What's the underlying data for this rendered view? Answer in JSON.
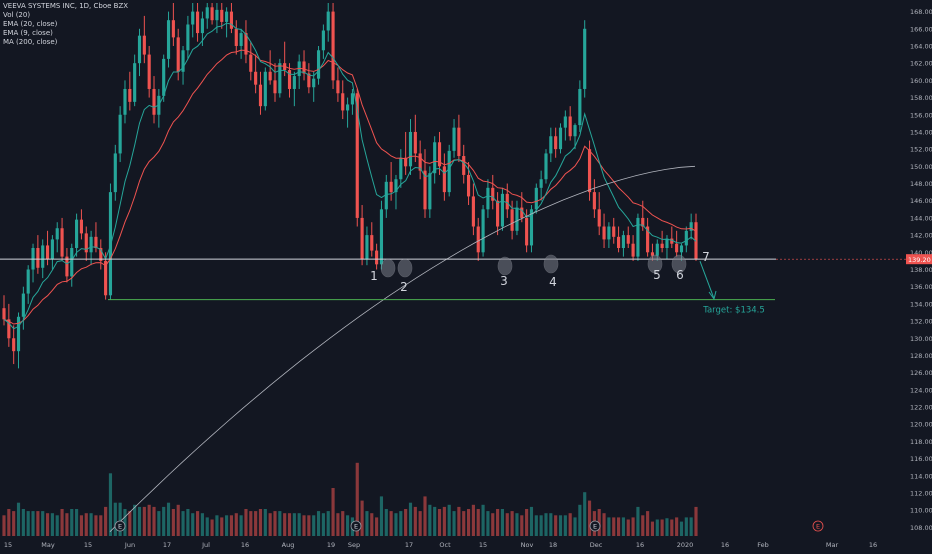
{
  "legend": {
    "symbol": "VEEVA SYSTEMS INC, 1D, Cboe BZX",
    "vol": "Vol (20)",
    "ema20": "EMA (20, close)",
    "ema9": "EMA (9, close)",
    "ma200": "MA (200, close)"
  },
  "colors": {
    "background": "#131722",
    "up": "#26a69a",
    "down": "#ef5350",
    "ema9": "#26a69a",
    "ema20": "#ef5350",
    "ma200": "#b2b5be",
    "support": "#d1d4dc",
    "target": "#4caf50",
    "axis_text": "#b2b5be",
    "circle": "#787b86"
  },
  "chart_data": {
    "type": "candlestick",
    "title": "VEEVA SYSTEMS INC, 1D, Cboe BZX",
    "y_axis": {
      "min": 107,
      "max": 169,
      "side": "right",
      "ticks": [
        108,
        110,
        112,
        114,
        116,
        118,
        120,
        122,
        124,
        126,
        128,
        130,
        132,
        134,
        136,
        138,
        140,
        142,
        144,
        146,
        148,
        150,
        152,
        154,
        156,
        158,
        160,
        162,
        164,
        166,
        168
      ]
    },
    "x_axis": {
      "labels": [
        "15",
        "May",
        "15",
        "Jun",
        "17",
        "Jul",
        "16",
        "Aug",
        "19",
        "Sep",
        "17",
        "Oct",
        "15",
        "Nov",
        "18",
        "Dec",
        "16",
        "2020",
        "16",
        "Feb",
        "Mar",
        "16"
      ]
    },
    "candles": [
      {
        "o": 133.5,
        "h": 135.0,
        "l": 131.5,
        "c": 132.2
      },
      {
        "o": 132.2,
        "h": 134.0,
        "l": 129.0,
        "c": 130.0
      },
      {
        "o": 130.0,
        "h": 131.5,
        "l": 127.0,
        "c": 128.5
      },
      {
        "o": 128.5,
        "h": 133.0,
        "l": 126.5,
        "c": 132.5
      },
      {
        "o": 132.5,
        "h": 136.0,
        "l": 131.0,
        "c": 135.2
      },
      {
        "o": 135.2,
        "h": 138.5,
        "l": 134.0,
        "c": 138.0
      },
      {
        "o": 138.0,
        "h": 141.0,
        "l": 136.5,
        "c": 140.5
      },
      {
        "o": 140.5,
        "h": 142.0,
        "l": 137.5,
        "c": 138.2
      },
      {
        "o": 138.2,
        "h": 141.5,
        "l": 137.0,
        "c": 140.8
      },
      {
        "o": 140.8,
        "h": 142.5,
        "l": 138.5,
        "c": 139.2
      },
      {
        "o": 139.2,
        "h": 142.0,
        "l": 138.0,
        "c": 141.5
      },
      {
        "o": 141.5,
        "h": 143.5,
        "l": 140.0,
        "c": 142.8
      },
      {
        "o": 142.8,
        "h": 144.0,
        "l": 139.0,
        "c": 139.5
      },
      {
        "o": 139.5,
        "h": 140.5,
        "l": 136.5,
        "c": 137.2
      },
      {
        "o": 137.2,
        "h": 141.0,
        "l": 136.0,
        "c": 140.5
      },
      {
        "o": 140.5,
        "h": 144.5,
        "l": 139.5,
        "c": 143.8
      },
      {
        "o": 143.8,
        "h": 145.0,
        "l": 141.5,
        "c": 142.2
      },
      {
        "o": 142.2,
        "h": 143.0,
        "l": 139.0,
        "c": 140.0
      },
      {
        "o": 140.0,
        "h": 142.5,
        "l": 138.5,
        "c": 141.8
      },
      {
        "o": 141.8,
        "h": 143.5,
        "l": 140.0,
        "c": 140.5
      },
      {
        "o": 140.5,
        "h": 141.5,
        "l": 138.0,
        "c": 139.0
      },
      {
        "o": 139.0,
        "h": 140.0,
        "l": 134.5,
        "c": 135.0
      },
      {
        "o": 135.0,
        "h": 148.0,
        "l": 134.5,
        "c": 147.0
      },
      {
        "o": 147.0,
        "h": 152.5,
        "l": 146.0,
        "c": 151.5
      },
      {
        "o": 151.5,
        "h": 157.0,
        "l": 150.5,
        "c": 156.0
      },
      {
        "o": 156.0,
        "h": 160.0,
        "l": 155.0,
        "c": 159.0
      },
      {
        "o": 159.0,
        "h": 161.0,
        "l": 156.5,
        "c": 157.5
      },
      {
        "o": 157.5,
        "h": 163.0,
        "l": 157.0,
        "c": 162.0
      },
      {
        "o": 162.0,
        "h": 166.0,
        "l": 160.5,
        "c": 165.2
      },
      {
        "o": 165.2,
        "h": 167.5,
        "l": 162.0,
        "c": 163.0
      },
      {
        "o": 163.0,
        "h": 164.0,
        "l": 158.0,
        "c": 159.0
      },
      {
        "o": 159.0,
        "h": 160.5,
        "l": 155.0,
        "c": 156.0
      },
      {
        "o": 156.0,
        "h": 159.0,
        "l": 154.5,
        "c": 158.2
      },
      {
        "o": 158.2,
        "h": 163.0,
        "l": 157.5,
        "c": 162.5
      },
      {
        "o": 162.5,
        "h": 168.0,
        "l": 161.5,
        "c": 167.0
      },
      {
        "o": 167.0,
        "h": 169.0,
        "l": 164.0,
        "c": 165.0
      },
      {
        "o": 165.0,
        "h": 166.0,
        "l": 160.0,
        "c": 161.0
      },
      {
        "o": 161.0,
        "h": 164.0,
        "l": 159.5,
        "c": 163.5
      },
      {
        "o": 163.5,
        "h": 167.5,
        "l": 162.5,
        "c": 166.5
      },
      {
        "o": 166.5,
        "h": 169.0,
        "l": 165.0,
        "c": 168.0
      },
      {
        "o": 168.0,
        "h": 169.0,
        "l": 164.5,
        "c": 165.5
      },
      {
        "o": 165.5,
        "h": 168.0,
        "l": 164.0,
        "c": 167.2
      },
      {
        "o": 167.2,
        "h": 169.0,
        "l": 166.0,
        "c": 168.5
      },
      {
        "o": 168.5,
        "h": 169.0,
        "l": 166.5,
        "c": 167.0
      },
      {
        "o": 167.0,
        "h": 169.0,
        "l": 165.5,
        "c": 168.2
      },
      {
        "o": 168.2,
        "h": 169.0,
        "l": 166.0,
        "c": 166.8
      },
      {
        "o": 166.8,
        "h": 168.5,
        "l": 165.0,
        "c": 168.0
      },
      {
        "o": 168.0,
        "h": 169.0,
        "l": 165.5,
        "c": 166.0
      },
      {
        "o": 166.0,
        "h": 167.0,
        "l": 163.0,
        "c": 164.0
      },
      {
        "o": 164.0,
        "h": 166.0,
        "l": 162.5,
        "c": 165.5
      },
      {
        "o": 165.5,
        "h": 167.0,
        "l": 162.0,
        "c": 163.0
      },
      {
        "o": 163.0,
        "h": 164.5,
        "l": 160.0,
        "c": 161.0
      },
      {
        "o": 161.0,
        "h": 163.0,
        "l": 158.5,
        "c": 159.5
      },
      {
        "o": 159.5,
        "h": 161.0,
        "l": 156.0,
        "c": 157.0
      },
      {
        "o": 157.0,
        "h": 161.5,
        "l": 156.5,
        "c": 161.0
      },
      {
        "o": 161.0,
        "h": 163.5,
        "l": 159.5,
        "c": 160.0
      },
      {
        "o": 160.0,
        "h": 162.0,
        "l": 157.5,
        "c": 158.5
      },
      {
        "o": 158.5,
        "h": 162.5,
        "l": 158.0,
        "c": 162.0
      },
      {
        "o": 162.0,
        "h": 164.5,
        "l": 160.5,
        "c": 161.2
      },
      {
        "o": 161.2,
        "h": 162.0,
        "l": 158.0,
        "c": 159.0
      },
      {
        "o": 159.0,
        "h": 161.0,
        "l": 157.0,
        "c": 160.5
      },
      {
        "o": 160.5,
        "h": 163.0,
        "l": 159.0,
        "c": 162.2
      },
      {
        "o": 162.2,
        "h": 163.5,
        "l": 160.0,
        "c": 160.8
      },
      {
        "o": 160.8,
        "h": 162.0,
        "l": 158.5,
        "c": 159.2
      },
      {
        "o": 159.2,
        "h": 161.0,
        "l": 157.5,
        "c": 160.2
      },
      {
        "o": 160.2,
        "h": 164.0,
        "l": 159.5,
        "c": 163.5
      },
      {
        "o": 163.5,
        "h": 166.5,
        "l": 162.5,
        "c": 165.8
      },
      {
        "o": 165.8,
        "h": 169.0,
        "l": 164.5,
        "c": 168.0
      },
      {
        "o": 168.0,
        "h": 169.0,
        "l": 159.0,
        "c": 160.0
      },
      {
        "o": 160.0,
        "h": 161.5,
        "l": 157.5,
        "c": 158.5
      },
      {
        "o": 158.5,
        "h": 160.0,
        "l": 155.5,
        "c": 156.5
      },
      {
        "o": 156.5,
        "h": 158.0,
        "l": 154.5,
        "c": 157.2
      },
      {
        "o": 157.2,
        "h": 159.0,
        "l": 156.0,
        "c": 158.5
      },
      {
        "o": 158.5,
        "h": 159.0,
        "l": 143.0,
        "c": 144.0
      },
      {
        "o": 144.0,
        "h": 145.5,
        "l": 138.5,
        "c": 139.2
      },
      {
        "o": 139.2,
        "h": 143.0,
        "l": 138.5,
        "c": 142.0
      },
      {
        "o": 142.0,
        "h": 143.5,
        "l": 139.5,
        "c": 140.2
      },
      {
        "o": 140.2,
        "h": 141.0,
        "l": 138.0,
        "c": 138.6
      },
      {
        "o": 138.6,
        "h": 146.0,
        "l": 138.0,
        "c": 145.0
      },
      {
        "o": 145.0,
        "h": 149.0,
        "l": 144.0,
        "c": 148.2
      },
      {
        "o": 148.2,
        "h": 150.5,
        "l": 146.0,
        "c": 147.0
      },
      {
        "o": 147.0,
        "h": 149.0,
        "l": 145.0,
        "c": 148.5
      },
      {
        "o": 148.5,
        "h": 152.0,
        "l": 147.5,
        "c": 151.0
      },
      {
        "o": 151.0,
        "h": 154.0,
        "l": 149.0,
        "c": 150.0
      },
      {
        "o": 150.0,
        "h": 155.5,
        "l": 149.0,
        "c": 154.0
      },
      {
        "o": 154.0,
        "h": 156.0,
        "l": 150.5,
        "c": 151.5
      },
      {
        "o": 151.5,
        "h": 153.0,
        "l": 148.5,
        "c": 149.5
      },
      {
        "o": 149.5,
        "h": 152.0,
        "l": 144.0,
        "c": 145.0
      },
      {
        "o": 145.0,
        "h": 150.0,
        "l": 144.0,
        "c": 149.2
      },
      {
        "o": 149.2,
        "h": 153.5,
        "l": 148.0,
        "c": 152.8
      },
      {
        "o": 152.8,
        "h": 154.0,
        "l": 149.0,
        "c": 150.0
      },
      {
        "o": 150.0,
        "h": 151.5,
        "l": 146.0,
        "c": 147.0
      },
      {
        "o": 147.0,
        "h": 152.5,
        "l": 146.5,
        "c": 151.8
      },
      {
        "o": 151.8,
        "h": 155.5,
        "l": 151.0,
        "c": 154.5
      },
      {
        "o": 154.5,
        "h": 156.0,
        "l": 150.5,
        "c": 151.2
      },
      {
        "o": 151.2,
        "h": 152.5,
        "l": 148.0,
        "c": 149.0
      },
      {
        "o": 149.0,
        "h": 150.5,
        "l": 145.5,
        "c": 146.5
      },
      {
        "o": 146.5,
        "h": 148.0,
        "l": 142.0,
        "c": 143.0
      },
      {
        "o": 143.0,
        "h": 144.0,
        "l": 139.0,
        "c": 140.0
      },
      {
        "o": 140.0,
        "h": 145.5,
        "l": 139.5,
        "c": 145.0
      },
      {
        "o": 145.0,
        "h": 148.5,
        "l": 144.0,
        "c": 147.5
      },
      {
        "o": 147.5,
        "h": 149.0,
        "l": 145.0,
        "c": 146.0
      },
      {
        "o": 146.0,
        "h": 147.0,
        "l": 142.0,
        "c": 143.0
      },
      {
        "o": 143.0,
        "h": 147.5,
        "l": 142.5,
        "c": 146.8
      },
      {
        "o": 146.8,
        "h": 148.0,
        "l": 144.0,
        "c": 145.0
      },
      {
        "o": 145.0,
        "h": 146.0,
        "l": 141.5,
        "c": 142.5
      },
      {
        "o": 142.5,
        "h": 146.0,
        "l": 142.0,
        "c": 145.2
      },
      {
        "o": 145.2,
        "h": 147.0,
        "l": 143.5,
        "c": 144.0
      },
      {
        "o": 144.0,
        "h": 145.0,
        "l": 140.0,
        "c": 140.8
      },
      {
        "o": 140.8,
        "h": 145.5,
        "l": 140.0,
        "c": 145.0
      },
      {
        "o": 145.0,
        "h": 148.0,
        "l": 144.5,
        "c": 147.5
      },
      {
        "o": 147.5,
        "h": 149.5,
        "l": 146.0,
        "c": 148.5
      },
      {
        "o": 148.5,
        "h": 152.0,
        "l": 148.0,
        "c": 151.5
      },
      {
        "o": 151.5,
        "h": 154.5,
        "l": 150.5,
        "c": 153.5
      },
      {
        "o": 153.5,
        "h": 154.5,
        "l": 151.0,
        "c": 152.0
      },
      {
        "o": 152.0,
        "h": 155.0,
        "l": 151.5,
        "c": 154.5
      },
      {
        "o": 154.5,
        "h": 156.5,
        "l": 153.0,
        "c": 155.8
      },
      {
        "o": 155.8,
        "h": 157.0,
        "l": 153.0,
        "c": 153.5
      },
      {
        "o": 153.5,
        "h": 155.0,
        "l": 152.0,
        "c": 154.8
      },
      {
        "o": 154.8,
        "h": 160.0,
        "l": 154.0,
        "c": 159.0
      },
      {
        "o": 159.0,
        "h": 167.0,
        "l": 158.0,
        "c": 166.0
      },
      {
        "o": 152.0,
        "h": 153.0,
        "l": 146.0,
        "c": 147.0
      },
      {
        "o": 147.0,
        "h": 148.5,
        "l": 144.0,
        "c": 145.0
      },
      {
        "o": 145.0,
        "h": 147.0,
        "l": 142.0,
        "c": 143.0
      },
      {
        "o": 143.0,
        "h": 144.5,
        "l": 140.5,
        "c": 141.5
      },
      {
        "o": 141.5,
        "h": 143.5,
        "l": 140.5,
        "c": 143.0
      },
      {
        "o": 143.0,
        "h": 144.0,
        "l": 141.0,
        "c": 141.8
      },
      {
        "o": 141.8,
        "h": 143.0,
        "l": 140.0,
        "c": 140.5
      },
      {
        "o": 140.5,
        "h": 142.5,
        "l": 139.5,
        "c": 142.0
      },
      {
        "o": 142.0,
        "h": 143.0,
        "l": 140.5,
        "c": 141.0
      },
      {
        "o": 141.0,
        "h": 142.0,
        "l": 139.0,
        "c": 139.5
      },
      {
        "o": 139.5,
        "h": 144.5,
        "l": 139.0,
        "c": 144.0
      },
      {
        "o": 144.0,
        "h": 146.0,
        "l": 142.5,
        "c": 143.0
      },
      {
        "o": 143.0,
        "h": 144.0,
        "l": 139.5,
        "c": 140.0
      },
      {
        "o": 140.0,
        "h": 141.0,
        "l": 139.0,
        "c": 139.6
      },
      {
        "o": 139.6,
        "h": 141.5,
        "l": 139.0,
        "c": 141.0
      },
      {
        "o": 141.0,
        "h": 142.5,
        "l": 140.0,
        "c": 140.5
      },
      {
        "o": 140.5,
        "h": 142.0,
        "l": 139.2,
        "c": 141.6
      },
      {
        "o": 141.6,
        "h": 143.0,
        "l": 140.5,
        "c": 141.0
      },
      {
        "o": 141.0,
        "h": 142.5,
        "l": 139.5,
        "c": 140.0
      },
      {
        "o": 140.0,
        "h": 141.0,
        "l": 139.0,
        "c": 140.8
      },
      {
        "o": 140.8,
        "h": 143.0,
        "l": 140.0,
        "c": 142.5
      },
      {
        "o": 142.5,
        "h": 144.5,
        "l": 141.5,
        "c": 143.5
      },
      {
        "o": 143.5,
        "h": 144.5,
        "l": 139.0,
        "c": 139.2
      }
    ],
    "support_line": {
      "value": 139.2
    },
    "target_line": {
      "value": 134.5,
      "label": "Target: $134.5"
    },
    "current_price_label": "139.20",
    "touch_points": [
      "1",
      "2",
      "3",
      "4",
      "5",
      "6",
      "7"
    ],
    "events": [
      "E",
      "E",
      "E",
      "E"
    ]
  }
}
